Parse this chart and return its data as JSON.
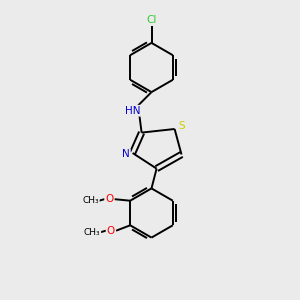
{
  "background_color": "#ebebeb",
  "bond_color": "#000000",
  "atom_colors": {
    "N": "#0000cd",
    "S": "#cccc00",
    "O": "#ff0000",
    "Cl": "#33cc33",
    "C": "#000000",
    "H": "#5f9ea0"
  },
  "figsize": [
    3.0,
    3.0
  ],
  "dpi": 100,
  "xlim": [
    0,
    10
  ],
  "ylim": [
    0,
    10
  ],
  "bond_lw": 1.4,
  "double_sep": 0.09,
  "font_size_atom": 7.5,
  "font_size_sub": 6.5
}
